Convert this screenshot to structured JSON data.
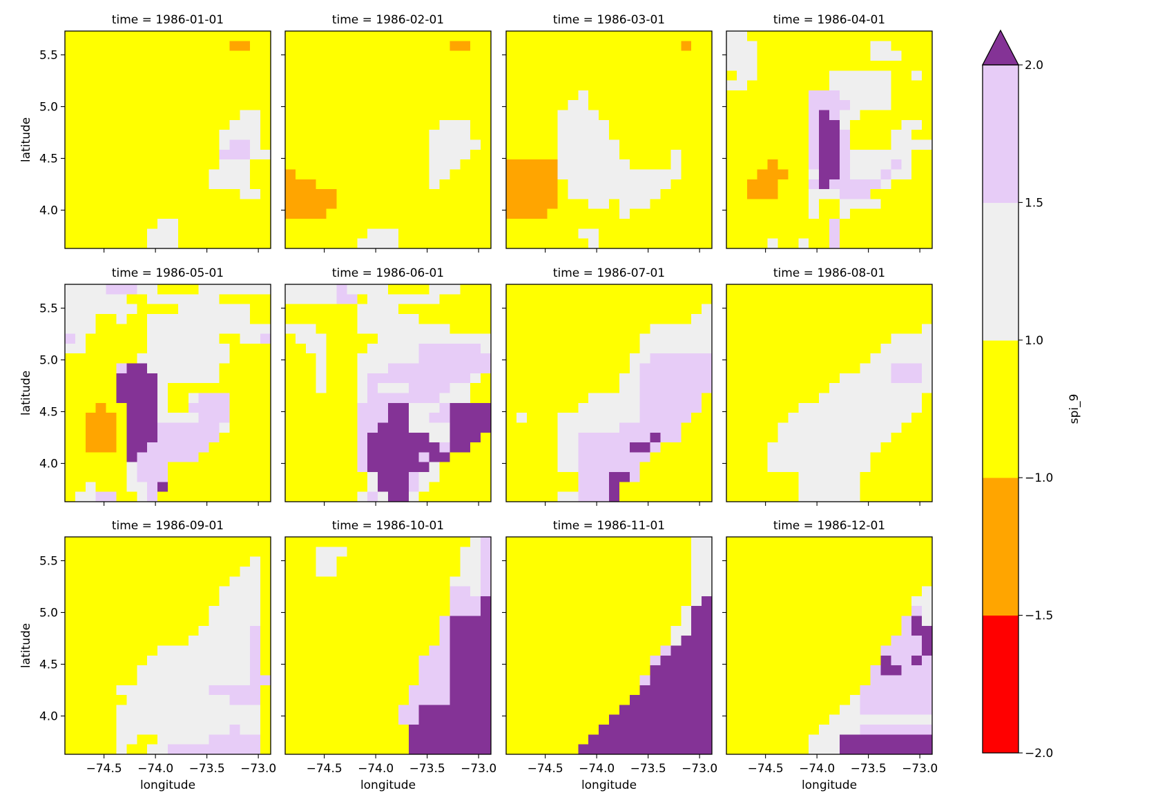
{
  "chart_data": {
    "type": "heatmap",
    "facet_titles": [
      "time = 1986-01-01",
      "time = 1986-02-01",
      "time = 1986-03-01",
      "time = 1986-04-01",
      "time = 1986-05-01",
      "time = 1986-06-01",
      "time = 1986-07-01",
      "time = 1986-08-01",
      "time = 1986-09-01",
      "time = 1986-10-01",
      "time = 1986-11-01",
      "time = 1986-12-01"
    ],
    "xlabel": "longitude",
    "ylabel": "latitude",
    "xlim": [
      -74.88,
      -72.88
    ],
    "ylim": [
      3.63,
      5.73
    ],
    "xticks": [
      -74.5,
      -74.0,
      -73.5,
      -73.0
    ],
    "xtick_labels": [
      "−74.5",
      "−74.0",
      "−73.5",
      "−73.0"
    ],
    "yticks": [
      4.0,
      4.5,
      5.0,
      5.5
    ],
    "ytick_labels": [
      "4.0",
      "4.5",
      "5.0",
      "5.5"
    ],
    "colorbar": {
      "label": "spi_9",
      "extend": "max",
      "boundaries": [
        -2.0,
        -1.5,
        -1.0,
        1.0,
        1.5,
        2.0
      ],
      "tick_labels": [
        "−2.0",
        "−1.5",
        "−1.0",
        "1.0",
        "1.5",
        "2.0"
      ],
      "colors": [
        "#ff0000",
        "#ffa500",
        "#ffff00",
        "#efefef",
        "#e7ccf7"
      ],
      "over_color": "#843396"
    },
    "class_values": {
      "R": "-2.0 to -1.5",
      "O": "-1.5 to -1.0",
      "Y": "-1.0 to 1.0",
      "W": "1.0 to 1.5",
      "L": "1.5 to 2.0",
      "P": "> 2.0"
    },
    "panels": [
      [
        "YYYYYYYYYYYYYYYYYYYY",
        "YYYYYYYYYYYYYYYYOOYY",
        "YYYYYYYYYYYYYYYYYYYY",
        "YYYYYYYYYYYYYYYYYYYY",
        "YYYYYYYYYYYYYYYYYYYY",
        "YYYYYYYYYYYYYYYYYYYY",
        "YYYYYYYYYYYYYYYYYYYY",
        "YYYYYYYYYYYYYYYYYYYY",
        "YYYYYYYYYYYYYYYYYWWY",
        "YYYYYYYYYYYYYYYYWWWY",
        "YYYYYYYYYYYYYYYWWWWY",
        "YYYYYYYYYYYYYYYWLLWY",
        "YYYYYYYYYYYYYYYLLLWW",
        "YYYYYYYYYYYYYYYWWWYY",
        "YYYYYYYYYYYYYYWWWWYY",
        "YYYYYYYYYYYYYYWWWWYY",
        "YYYYYYYYYYYYYYYYYWWY",
        "YYYYYYYYYYYYYYYYYYYY",
        "YYYYYYYYYYYYYYYYYYYY",
        "YYYYYYYYYWWYYYYYYYYY",
        "YYYYYYYYWWWYYYYYYYYY",
        "YYYYYYYYWWWYYYYYYYYY"
      ],
      [
        "YYYYYYYYYYYYYYYYYYYY",
        "YYYYYYYYYYYYYYYYOOYY",
        "YYYYYYYYYYYYYYYYYYYY",
        "YYYYYYYYYYYYYYYYYYYY",
        "YYYYYYYYYYYYYYYYYYYY",
        "YYYYYYYYYYYYYYYYYYYY",
        "YYYYYYYYYYYYYYYYYYYY",
        "YYYYYYYYYYYYYYYYYYYY",
        "YYYYYYYYYYYYYYYYYYYY",
        "YYYYYYYYYYYYYYYWWWYY",
        "YYYYYYYYYYYYYYWWWWYY",
        "YYYYYYYYYYYYYYWWWWWY",
        "YYYYYYYYYYYYYYWWWWYY",
        "YYYYYYYYYYYYYYWWWYYY",
        "OYYYYYYYYYYYYYWWYYYY",
        "OOOYYYYYYYYYYYWYYYYY",
        "OOOOOYYYYYYYYYYYYYYY",
        "OOOOOYYYYYYYYYYYYYYY",
        "OOOOYYYYYYYYYYYYYYYY",
        "YYYYYYYYYYYYYYYYYYYY",
        "YYYYYYYYWWWYYYYYYYYY",
        "YYYYYYYWWWWYYYYYYYYY"
      ],
      [
        "YYYYYYYYYYYYYYYYYYYY",
        "YYYYYYYYYYYYYYYYYOYY",
        "YYYYYYYYYYYYYYYYYYYY",
        "YYYYYYYYYYYYYYYYYYYY",
        "YYYYYYYYYYYYYYYYYYYY",
        "YYYYYYYYYYYYYYYYYYYY",
        "YYYYYYYWYYYYYYYYYYYY",
        "YYYYYYWWYYYYYYYYYYYY",
        "YYYYYWWWWYYYYYYYYYYY",
        "YYYYYWWWWWYYYYYYYYYY",
        "YYYYYWWWWWYYYYYYYYYY",
        "YYYYYWWWWWWYYYYYYYYY",
        "YYYYYWWWWWWYYYYYWYYY",
        "OOOOOWWWWWWWYYYYWYYY",
        "OOOOOWWWWWWWWWWWWYYY",
        "OOOOOYWWWWWWWWWWYYYY",
        "OOOOOYWWWWWWWWWYYYYY",
        "OOOOOYYYWWYWWWYYYYYY",
        "OOOOYYYYYYYWYYYYYYYY",
        "YYYYYYYYYYYYYYYYYYYY",
        "YYYYYYYWWYYYYYYYYYYY",
        "YYYYYYYYWYYYYYYYYYYY"
      ],
      [
        "WWYYYYYYYYYYYYYYYYYY",
        "WWWYYYYYYYYYYYWWYYYY",
        "WWWYYYYYYYYYYYWWWYYY",
        "WWWYYYYYYYYYYYYYYYYY",
        "YWWYYYYYYYWWWWWWYYWY",
        "WWYYYYYYYYWWWWWWYYYY",
        "YYYYYYYYLLLWWWWWYYYY",
        "YYYYYYYYLLLLWWWWYYYY",
        "YYYYYYYYLPLWWYYYYYYY",
        "YYYYYYYYLPPWYYYYYWWY",
        "YYYYYYYYLPPLYYYYWWYY",
        "YYYYYYYYLPPLYYYYWWWW",
        "YYYYYYYYLPPLWWWWWWYY",
        "YYYYOYYYLPPLWWWWLWYY",
        "YYYOOOYYWPPLWWWLWWYY",
        "YYOOOYYYLPLLLLLWYYYY",
        "YYOOOYYYWWWLLLYYYYYY",
        "YYYYYYYYWYYWWWWYYYYY",
        "YYYYYYYYWYYWYYYYYYYY",
        "YYYYYYYYYYLYYYYYYYYY",
        "YYYYYYYYYYLYYYYYYYYY",
        "YYYYWYYWYYLYYYYYYYYY"
      ],
      [
        "WWWWLLLWWYYYYWWWWWWW",
        "WWWWWWYYWWWWWWWYYYYY",
        "WWWWWWWYYYYWWWWWWWYY",
        "WWWYYWYYWWWWWWWWWWYY",
        "WWWYYYYYWWWWWWWWWWWW",
        "LWYYYYYYWWWWWWWYYWWL",
        "WWYYYYYYWWWWWWWWYYYY",
        "YYYYYYYWWWWWWWWWYYYY",
        "YYYYYLPPWWWWWWWYYYYY",
        "YYYYYPPPPWWWWWWYYYYY",
        "YYYYYPPPPWYYYYYYYYYY",
        "YYYYYPPPPWYYWLLLYYYY",
        "YYYOYYPPPWYYLLLLYYYY",
        "YYOOOYPPPWWWWLLLYYYY",
        "YYOOOYPPPLLLLLLWYYYY",
        "YYOOOYPPPLLLLLLYYYYY",
        "YYOOOYPPLLLLLLYYYYYY",
        "YYYYYYPLLLLLLYYYYYYY",
        "YYYYYYWLLLYYYYYYYYYY",
        "YYYYYYWLLLYYYYYYYYYY",
        "YYWYYYWWLPYYYYYYYYYY",
        "YWWLLYYWLYYYYYYYYYYY"
      ],
      [
        "WWWWWLWWWWYYYYWWWYYY",
        "WWWWWLLYWWWWWWWYYYYY",
        "YYYYYYYWWWWYYYYYYYYY",
        "YYYYYYYWWWWWWYYYYYYY",
        "WWWYYYYWWWWWWWWWYYYY",
        "YWWWYYYYYWWWWWWWWWWW",
        "YYWWYYYYWWWWWLLLLLLW",
        "YYYWYYYWWWWWWLLLLLLL",
        "YYYWYYYWWWLLLLLLLLLL",
        "YYYWYYYWLLLLLLLLLLWY",
        "YYYWYYYWLWWWLLLLWWYY",
        "YYYYYYYWLLLLLLLWWWYY",
        "YYYYYYYLLLPPWWWLPPPP",
        "YYYYYYYLLLPPWWLLPPPP",
        "YYYYYYYLLPPPWWWWPPPP",
        "YYYYYYYLPPPPPPWWPPPY",
        "YYYYYYYLPPPPPPPLPPYY",
        "YYYYYYYLPPPPPLPPYYYY",
        "YYYYYYYLPPPPPPWYYYYY",
        "YYYYYYYYWPPPLWWYYYYY",
        "YYYYYYYYWPPPLWYYYYYY",
        "YYYYYYYWLWPPWYYYYYYY"
      ],
      [
        "YYYYYYYYYYYYYYYYYYYY",
        "YYYYYYYYYYYYYYYYYYYY",
        "YYYYYYYYYYYYYYYYYYYW",
        "YYYYYYYYYYYYYYYYYYWW",
        "YYYYYYYYYYYYYYWWWWWW",
        "YYYYYYYYYYYYYWWWWWWW",
        "YYYYYYYYYYYYYWWWWWWW",
        "YYYYYYYYYYYYWWLLLLLL",
        "YYYYYYYYYYYYWLLLLLLL",
        "YYYYYYYYYYYWWLLLLLLL",
        "YYYYYYYYYYYWWLLLLLLL",
        "YYYYYYYYWWWWWLLLLLLY",
        "YYYYYYYWWWWWWLLLLLLY",
        "YWYYYWWWWWWWWLLLLLYY",
        "YYYYYWWWWWWLLLLLLYYY",
        "YYYYYWWLLLLLLLPLLYYY",
        "YYYYYWWLLLLLPPLYYYYY",
        "YYYYYWWLLLLLLLYYYYYY",
        "YYYYYWWLLLLLLYYYYYYY",
        "YYYYYYYLLLPPLYYYYYYY",
        "YYYYYYYLLLPYYYYYYYYY",
        "YYYYYWWLLLPYYYYYYYYY"
      ],
      [
        "YYYYYYYYYYYYYYYYYYYY",
        "YYYYYYYYYYYYYYYYYYYY",
        "YYYYYYYYYYYYYYYYYYYY",
        "YYYYYYYYYYYYYYYYYYYY",
        "YYYYYYYYYYYYYYYYYYYW",
        "YYYYYYYYYYYYYYYYWWWW",
        "YYYYYYYYYYYYYYYWWWWW",
        "YYYYYYYYYYYYYYWWWWWW",
        "YYYYYYYYYYYYYWWWLLLW",
        "YYYYYYYYYYYWWWWWLLLW",
        "YYYYYYYYYYWWWWWWWWWW",
        "YYYYYYYYYWWWWWWWWWWY",
        "YYYYYYYWWWWWWWWWWWWY",
        "YYYYYYWWWWWWWWWWWWYY",
        "YYYYYWWWWWWWWWWWWYYY",
        "YYYYYWWWWWWWWWWWYYYY",
        "YYYYWWWWWWWWWWWYYYYY",
        "YYYYWWWWWWWWWWYYYYYY",
        "YYYYWWWWWWWWWWYYYYYY",
        "YYYYYYYWWWWWWYYYYYYY",
        "YYYYYYYWWWWWWYYYYYYY",
        "YYYYYYYWWWWWWYYYYYYY"
      ],
      [
        "YYYYYYYYYYYYYYYYYYYY",
        "YYYYYYYYYYYYYYYYYYYY",
        "YYYYYYYYYYYYYYYYYYWY",
        "YYYYYYYYYYYYYYYYYWWY",
        "YYYYYYYYYYYYYYYYWWWY",
        "YYYYYYYYYYYYYYYWWWWY",
        "YYYYYYYYYYYYYYYWWWWY",
        "YYYYYYYYYYYYYYWWWWWY",
        "YYYYYYYYYYYYYYWWWWWY",
        "YYYYYYYYYYYYYWWWWWLY",
        "YYYYYYYYYYYYWWWWWWLY",
        "YYYYYYYYYWWWWWWWWWLY",
        "YYYYYYYYWWWWWWWWWWLY",
        "YYYYYYYWWWWWWWWWWWLY",
        "YYYYYYYWWWWWWWWWWWLL",
        "YYYYYWWWWWWWWWLLLLLY",
        "YYYYYYWWWWWWWWWWLLLY",
        "YYYYYWWWWWWWWWWWWWWY",
        "YYYYYWWWWWWWWWWWWWWY",
        "YYYYYWWWWWWWWWWWLWWY",
        "YYYYYWWYYWWWWWLLLLLY",
        "YYYYYWYYWWLLLLLLLLLY"
      ],
      [
        "YYYYYYYYYYYYYYYYYYWL",
        "YYYWWWYYYYYYYYYYYWWL",
        "YYYWWYYYYYYYYYYYYWWL",
        "YYYWWYYYYYYYYYYYYWWL",
        "YYYYYYYYYYYYYYYYWWWL",
        "YYYYYYYYYYYYYYYYLLWL",
        "YYYYYYYYYYYYYYYYLLLP",
        "YYYYYYYYYYYYYYYYLLLP",
        "YYYYYYYYYYYYYYYLPPPP",
        "YYYYYYYYYYYYYYYLPPPP",
        "YYYYYYYYYYYYYYYLPPPP",
        "YYYYYYYYYYYYYYLLPPPP",
        "YYYYYYYYYYYYYLLLPPPP",
        "YYYYYYYYYYYYYLLLPPPP",
        "YYYYYYYYYYYYYLLLPPPP",
        "YYYYYYYYYYYYLLLLPPPP",
        "YYYYYYYYYYYYLLLLPPPP",
        "YYYYYYYYYYYLLPPPPPPP",
        "YYYYYYYYYYYLLPPPPPPP",
        "YYYYYYYYYYYYPPPPPPPP",
        "YYYYYYYYYYYYPPPPPPPP",
        "YYYYYYYYYYYYPPPPPPPP"
      ],
      [
        "YYYYYYYYYYYYYYYYYYWW",
        "YYYYYYYYYYYYYYYYYYWW",
        "YYYYYYYYYYYYYYYYYYWW",
        "YYYYYYYYYYYYYYYYYYWW",
        "YYYYYYYYYYYYYYYYYYWW",
        "YYYYYYYYYYYYYYYYYYWW",
        "YYYYYYYYYYYYYYYYYYWP",
        "YYYYYYYYYYYYYYYYYWPP",
        "YYYYYYYYYYYYYYYYYWPP",
        "YYYYYYYYYYYYYYYYWWPP",
        "YYYYYYYYYYYYYYYYWPPP",
        "YYYYYYYYYYYYYYYLPPPP",
        "YYYYYYYYYYYYYYLPPPPP",
        "YYYYYYYYYYYYYYPPPPPP",
        "YYYYYYYYYYYYYLPPPPPP",
        "YYYYYYYYYYYYYPPPPPPP",
        "YYYYYYYYYYYYPPPPPPPP",
        "YYYYYYYYYYYPPPPPPPPP",
        "YYYYYYYYYYPPPPPPPPPP",
        "YYYYYYYYYPPPPPPPPPPP",
        "YYYYYYYYPPPPPPPPPPPP",
        "YYYYYYYPPPPPPPPPPPPP"
      ],
      [
        "YYYYYYYYYYYYYYYYYYYY",
        "YYYYYYYYYYYYYYYYYYYY",
        "YYYYYYYYYYYYYYYYYYYY",
        "YYYYYYYYYYYYYYYYYYYY",
        "YYYYYYYYYYYYYYYYYYYY",
        "YYYYYYYYYYYYYYYYYYYW",
        "YYYYYYYYYYYYYYYYYYWW",
        "YYYYYYYYYYYYYYYYYYLW",
        "YYYYYYYYYYYYYYYYYLPW",
        "YYYYYYYYYYYYYYYYYLPP",
        "YYYYYYYYYYYYYYYYLLLP",
        "YYYYYYYYYYYYYYYLLLLP",
        "YYYYYYYYYYYYYYYPLLPL",
        "YYYYYYYYYYYYYYLPPLLL",
        "YYYYYYYYYYYYYYLLLLLL",
        "YYYYYYYYYYYYYLLLLLLL",
        "YYYYYYYYYYYYWLLLLLLL",
        "YYYYYYYYYYYWWLLLLLLL",
        "YYYYYYYYYYWWWWWWWWWW",
        "YYYYYYYYYWWWWLLLLLLL",
        "YYYYYYYYWWWPPPPPPPPP",
        "YYYYYYYYWWWPPPPPPPPP"
      ]
    ]
  }
}
